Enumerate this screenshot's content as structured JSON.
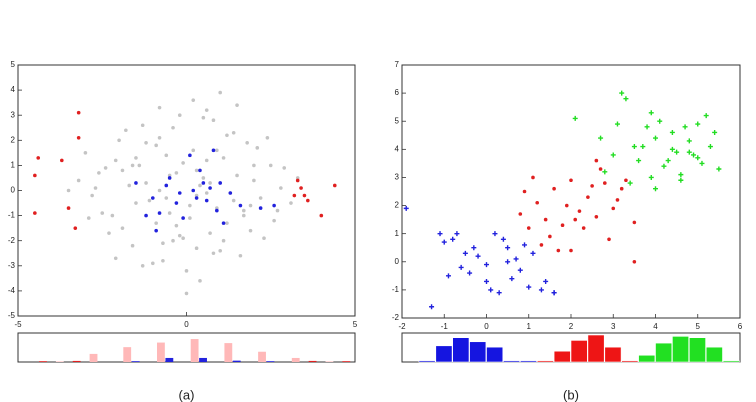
{
  "chart_data": [
    {
      "type": "scatter",
      "xlim": [
        -5,
        5
      ],
      "ylim": [
        -5,
        5
      ],
      "xticks": [
        -5,
        0,
        5
      ],
      "yticks": [
        -5,
        -4,
        -3,
        -2,
        -1,
        0,
        1,
        2,
        3,
        4,
        5
      ],
      "series": [
        {
          "color": "#c4c4c4",
          "marker": "dot",
          "x": [
            -2.1,
            -1.5,
            -0.8,
            0.3,
            1.2,
            2.0,
            -2.8,
            -0.4,
            0.9,
            1.7,
            -1.2,
            0.1,
            -0.6,
            1.4,
            2.5,
            -1.9,
            -0.2,
            0.6,
            -2.4,
            1.0,
            -0.9,
            0.4,
            1.9,
            -1.6,
            -0.1,
            2.8,
            -3.0,
            0.7,
            -1.3,
            1.5,
            -0.5,
            0.2,
            -2.2,
            1.1,
            -0.7,
            2.3,
            -1.8,
            0.5,
            -0.3,
            1.6,
            -2.6,
            0.8,
            -1.1,
            2.1,
            0.0,
            -1.4,
            1.3,
            -0.8,
            2.6,
            -2.0,
            0.3,
            -0.6,
            1.8,
            -1.7,
            0.9,
            -0.2,
            2.2,
            -2.5,
            0.6,
            -1.0,
            1.2,
            -3.2,
            0.1,
            2.9,
            -1.5,
            0.4,
            -0.4,
            1.7,
            -2.3,
            0.7,
            3.1,
            -0.9,
            1.0,
            -1.9,
            0.2,
            2.4,
            -0.7,
            -2.7,
            1.4,
            -0.1,
            0.5,
            -1.2,
            2.0,
            -3.5,
            0.8,
            -0.5,
            1.9,
            -1.6,
            3.3,
            0.0,
            -2.1,
            1.1,
            -0.3,
            2.7,
            -1.3,
            0.6,
            -2.9,
            1.5,
            -0.8,
            0.3
          ],
          "y": [
            1.2,
            -0.5,
            2.1,
            0.8,
            -1.3,
            0.4,
            -0.2,
            -2.0,
            1.6,
            -0.8,
            0.3,
            -1.1,
            -0.3,
            2.3,
            1.0,
            -1.5,
            3.0,
            -0.1,
            0.9,
            -2.4,
            1.8,
            0.2,
            -0.6,
            -2.2,
            1.1,
            0.1,
            1.5,
            -1.7,
            2.6,
            0.6,
            -0.9,
            3.6,
            -1.0,
            1.3,
            -2.8,
            -1.9,
            2.4,
            0.5,
            -1.4,
            -2.6,
            0.7,
            2.8,
            -0.4,
            1.7,
            -3.2,
            1.0,
            -0.1,
            0.0,
            -1.2,
            2.0,
            -2.3,
            1.4,
            1.9,
            0.2,
            -0.7,
            -1.8,
            -0.3,
            -0.9,
            3.2,
            -2.9,
            2.2,
            0.4,
            -0.6,
            0.9,
            1.3,
            -3.6,
            2.5,
            -1.0,
            -1.7,
            0.3,
            -0.5,
            -1.3,
            3.9,
            0.8,
            1.6,
            2.1,
            -2.1,
            0.1,
            -0.4,
            -1.9,
            2.9,
            1.9,
            1.0,
            0.0,
            -2.5,
            0.6,
            -1.6,
            1.0,
            0.5,
            -4.1,
            -2.7,
            -2.0,
            0.7,
            -0.8,
            -3.0,
            1.2,
            -1.1,
            3.4,
            3.3,
            -0.2
          ]
        },
        {
          "color": "#2222dd",
          "marker": "dot",
          "x": [
            -1.0,
            -0.5,
            0.2,
            0.6,
            1.0,
            -0.8,
            0.1,
            0.9,
            -0.3,
            0.4,
            1.3,
            -1.5,
            0.7,
            -0.1,
            1.6,
            2.2,
            -1.2,
            0.3,
            0.8,
            -0.6,
            1.1,
            -0.2,
            2.6,
            0.5,
            -0.9
          ],
          "y": [
            -0.3,
            0.5,
            0.0,
            -0.4,
            0.3,
            -0.9,
            1.4,
            -0.8,
            -0.5,
            0.8,
            -0.1,
            0.3,
            0.1,
            -1.1,
            -0.6,
            -0.7,
            -1.0,
            -0.3,
            1.6,
            0.2,
            -1.3,
            -0.1,
            -0.6,
            0.3,
            -1.6
          ]
        },
        {
          "color": "#e02020",
          "marker": "dot",
          "x": [
            -4.4,
            -4.5,
            -4.5,
            -3.7,
            -3.2,
            -3.2,
            -3.5,
            -3.3,
            3.3,
            3.4,
            3.5,
            3.6,
            4.4,
            4.0,
            3.2
          ],
          "y": [
            1.3,
            0.6,
            -0.9,
            1.2,
            3.1,
            2.1,
            -0.7,
            -1.5,
            0.4,
            0.1,
            -0.2,
            -0.4,
            0.2,
            -1.0,
            -0.2
          ]
        }
      ]
    },
    {
      "type": "histogram",
      "caption": "(a)",
      "ylim": [
        0,
        1
      ],
      "bins": [
        -5,
        -4,
        -3,
        -2,
        -1,
        0,
        1,
        2,
        3,
        4,
        5
      ],
      "series": [
        {
          "color": "#ffb8b8",
          "values": [
            0,
            0.02,
            0.3,
            0.55,
            0.72,
            0.85,
            0.7,
            0.38,
            0.15,
            0.02
          ]
        },
        {
          "color": "#2222dd",
          "values": [
            0,
            0,
            0,
            0.03,
            0.15,
            0.15,
            0.05,
            0.03,
            0,
            0
          ]
        },
        {
          "color": "#e02020",
          "values": [
            0.03,
            0.04,
            0,
            0,
            0,
            0,
            0,
            0,
            0.04,
            0.03
          ]
        }
      ]
    },
    {
      "type": "scatter",
      "xlim": [
        -2,
        6
      ],
      "ylim": [
        -2,
        7
      ],
      "xticks": [
        -2,
        -1,
        0,
        1,
        2,
        3,
        4,
        5,
        6
      ],
      "yticks": [
        -2,
        -1,
        0,
        1,
        2,
        3,
        4,
        5,
        6,
        7
      ],
      "series": [
        {
          "color": "#2222dd",
          "marker": "plus",
          "x": [
            -1.9,
            -1.1,
            -1.0,
            -0.8,
            -0.5,
            -0.6,
            -0.3,
            0.0,
            0.2,
            0.4,
            0.5,
            0.7,
            -0.9,
            -0.4,
            0.1,
            0.6,
            0.9,
            1.1,
            1.4,
            1.6,
            -0.2,
            0.3,
            0.8,
            1.3,
            -0.7,
            0.0,
            0.5,
            1.0,
            -1.3,
            1.6
          ],
          "y": [
            1.9,
            1.0,
            0.7,
            0.8,
            0.3,
            -0.2,
            0.5,
            -0.1,
            1.0,
            0.8,
            0.0,
            0.1,
            -0.5,
            -0.4,
            -1.0,
            -0.6,
            0.6,
            0.3,
            -0.7,
            -1.1,
            0.2,
            -1.1,
            -0.3,
            -1.0,
            1.0,
            -0.7,
            0.5,
            -0.9,
            -1.6,
            -1.1
          ]
        },
        {
          "color": "#e02020",
          "marker": "dot",
          "x": [
            0.9,
            1.2,
            1.4,
            1.6,
            1.8,
            2.0,
            2.2,
            2.4,
            2.6,
            2.8,
            3.0,
            3.2,
            1.1,
            1.5,
            1.9,
            2.3,
            2.7,
            3.1,
            0.8,
            1.3,
            1.7,
            2.1,
            2.5,
            2.9,
            3.3,
            3.5,
            1.0,
            2.0,
            2.6,
            3.5
          ],
          "y": [
            2.5,
            2.1,
            1.5,
            2.6,
            1.3,
            2.9,
            1.8,
            2.3,
            1.6,
            2.8,
            1.9,
            2.6,
            3.0,
            0.9,
            2.0,
            1.2,
            3.3,
            2.2,
            1.7,
            0.6,
            0.4,
            1.5,
            2.7,
            0.8,
            2.9,
            1.4,
            1.2,
            0.4,
            3.6,
            0.0
          ]
        },
        {
          "color": "#22dd22",
          "marker": "plus",
          "x": [
            2.1,
            2.7,
            3.0,
            3.2,
            3.3,
            3.5,
            3.6,
            3.8,
            3.9,
            4.0,
            4.1,
            4.2,
            4.4,
            4.5,
            4.6,
            4.7,
            4.8,
            4.9,
            5.0,
            5.1,
            5.2,
            5.3,
            5.5,
            3.4,
            3.7,
            4.3,
            4.8,
            5.4,
            2.8,
            3.1,
            4.0,
            4.6,
            5.0,
            3.9,
            4.4
          ],
          "y": [
            5.1,
            4.4,
            3.8,
            6.0,
            5.8,
            4.1,
            3.6,
            4.8,
            3.0,
            4.4,
            5.0,
            3.4,
            4.6,
            3.9,
            2.9,
            4.8,
            4.3,
            3.8,
            4.9,
            3.5,
            5.2,
            4.1,
            3.3,
            2.8,
            4.1,
            3.6,
            3.9,
            4.6,
            3.2,
            4.9,
            2.6,
            3.1,
            3.7,
            5.3,
            4.0
          ]
        }
      ]
    },
    {
      "type": "histogram",
      "caption": "(b)",
      "ylim": [
        0,
        1
      ],
      "bins": [
        -2,
        -1.6,
        -1.2,
        -0.8,
        -0.4,
        0,
        0.4,
        0.8,
        1.2,
        1.6,
        2,
        2.4,
        2.8,
        3.2,
        3.6,
        4,
        4.4,
        4.8,
        5.2,
        5.6,
        6
      ],
      "series": [
        {
          "color": "#1515e0",
          "values": [
            0,
            0.05,
            0.6,
            0.9,
            0.75,
            0.55,
            0.05,
            0.05,
            0,
            0,
            0,
            0,
            0,
            0,
            0,
            0,
            0,
            0,
            0,
            0
          ]
        },
        {
          "color": "#ee1515",
          "values": [
            0,
            0,
            0,
            0,
            0,
            0,
            0,
            0,
            0.05,
            0.4,
            0.8,
            1.0,
            0.55,
            0.05,
            0,
            0,
            0,
            0,
            0,
            0
          ]
        },
        {
          "color": "#22e022",
          "values": [
            0,
            0,
            0,
            0,
            0,
            0,
            0,
            0,
            0,
            0,
            0,
            0,
            0,
            0,
            0.25,
            0.7,
            0.95,
            0.9,
            0.55,
            0.05
          ]
        }
      ]
    }
  ]
}
